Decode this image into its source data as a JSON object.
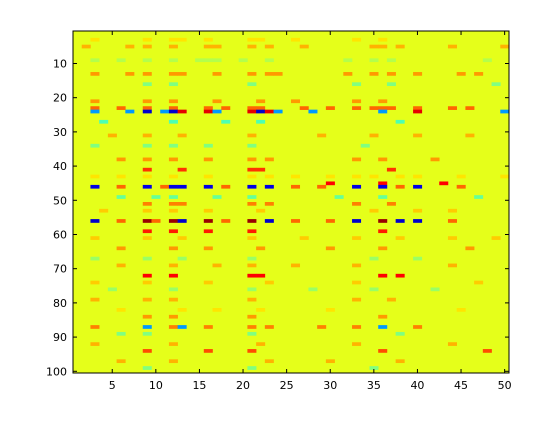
{
  "chart_data": {
    "type": "heatmap",
    "title": "",
    "xlabel": "",
    "ylabel": "",
    "colormap": "jet",
    "x_range": [
      1,
      51
    ],
    "y_range": [
      1,
      101
    ],
    "y_axis_direction": "top-to-bottom",
    "x_ticks": [
      5,
      10,
      15,
      20,
      25,
      30,
      35,
      40,
      45,
      50
    ],
    "y_ticks": [
      10,
      20,
      30,
      40,
      50,
      60,
      70,
      80,
      90,
      100
    ],
    "color_range": [
      -1,
      1
    ],
    "baseline_value": 0.2,
    "cells": [
      {
        "row": 3,
        "cols": [
          3,
          9,
          12,
          13,
          16,
          21,
          22,
          26,
          33,
          36
        ],
        "value": 0.3
      },
      {
        "row": 5,
        "cols": [
          2,
          7,
          9,
          12,
          16,
          17,
          21,
          23,
          27,
          35,
          36,
          38,
          44,
          50
        ],
        "value": 0.4
      },
      {
        "row": 9,
        "cols": [
          3,
          6,
          9,
          12,
          15,
          16,
          17,
          20,
          23,
          32,
          35,
          37,
          48
        ],
        "value": 0.1
      },
      {
        "row": 13,
        "cols": [
          3,
          7,
          9,
          12,
          13,
          17,
          21,
          23,
          24,
          32,
          35,
          37,
          40,
          45,
          47,
          51
        ],
        "value": 0.45
      },
      {
        "row": 16,
        "cols": [
          9,
          12,
          21,
          33,
          37,
          49
        ],
        "value": 0.0
      },
      {
        "row": 21,
        "cols": [
          3,
          9,
          12,
          17,
          22,
          26,
          33,
          36
        ],
        "value": 0.45
      },
      {
        "row": 23,
        "cols": [
          3,
          6,
          9,
          12,
          16,
          18,
          21,
          22,
          27,
          30,
          33,
          35,
          36,
          37,
          40,
          44,
          46,
          51
        ],
        "value": 0.55
      },
      {
        "row": 24,
        "cols": [
          9,
          12,
          22
        ],
        "value": -0.85
      },
      {
        "row": 24,
        "cols": [
          13,
          16,
          21,
          23,
          40
        ],
        "value": 0.8
      },
      {
        "row": 24,
        "cols": [
          3,
          7,
          11,
          17,
          24,
          28,
          36,
          50
        ],
        "value": -0.45
      },
      {
        "row": 27,
        "cols": [
          4,
          12,
          18,
          22,
          38
        ],
        "value": -0.1
      },
      {
        "row": 31,
        "cols": [
          5,
          9,
          13,
          21,
          29,
          35,
          40,
          46
        ],
        "value": 0.4
      },
      {
        "row": 34,
        "cols": [
          3,
          9,
          12,
          16,
          21,
          34
        ],
        "value": 0.0
      },
      {
        "row": 38,
        "cols": [
          6,
          9,
          12,
          16,
          21,
          23,
          33,
          36,
          42
        ],
        "value": 0.45
      },
      {
        "row": 41,
        "cols": [
          9,
          13,
          21,
          22,
          37
        ],
        "value": 0.65
      },
      {
        "row": 43,
        "cols": [
          3,
          6,
          9,
          12,
          16,
          21,
          23,
          26,
          30,
          33,
          35,
          38,
          40,
          45,
          50
        ],
        "value": 0.3
      },
      {
        "row": 45,
        "cols": [
          30,
          36,
          43
        ],
        "value": 0.75
      },
      {
        "row": 46,
        "cols": [
          3,
          9,
          12,
          13,
          16,
          21,
          23,
          33,
          36,
          40,
          51
        ],
        "value": -0.8
      },
      {
        "row": 46,
        "cols": [
          6,
          11,
          18,
          26,
          29,
          38,
          45
        ],
        "value": 0.55
      },
      {
        "row": 49,
        "cols": [
          6,
          10,
          12,
          17,
          21,
          31,
          36,
          47
        ],
        "value": -0.05
      },
      {
        "row": 51,
        "cols": [
          9,
          12,
          13,
          21,
          23,
          33,
          37
        ],
        "value": 0.5
      },
      {
        "row": 53,
        "cols": [
          4,
          9,
          12,
          16,
          22,
          35,
          40,
          44
        ],
        "value": 0.35
      },
      {
        "row": 56,
        "cols": [
          9,
          12,
          16,
          21,
          36
        ],
        "value": 0.95
      },
      {
        "row": 56,
        "cols": [
          3,
          13,
          23,
          33,
          38,
          40,
          51
        ],
        "value": -0.85
      },
      {
        "row": 56,
        "cols": [
          6,
          10,
          18,
          26,
          30,
          44
        ],
        "value": 0.55
      },
      {
        "row": 59,
        "cols": [
          9,
          12,
          16,
          21,
          36
        ],
        "value": 0.7
      },
      {
        "row": 61,
        "cols": [
          3,
          9,
          13,
          21,
          27,
          33,
          38,
          44,
          49
        ],
        "value": 0.35
      },
      {
        "row": 64,
        "cols": [
          6,
          12,
          16,
          22,
          30,
          36,
          46
        ],
        "value": 0.45
      },
      {
        "row": 67,
        "cols": [
          3,
          9,
          13,
          21,
          35,
          40
        ],
        "value": 0.05
      },
      {
        "row": 69,
        "cols": [
          6,
          12,
          17,
          21,
          26,
          33,
          44
        ],
        "value": 0.4
      },
      {
        "row": 72,
        "cols": [
          9,
          12,
          21,
          22,
          36,
          38
        ],
        "value": 0.75
      },
      {
        "row": 74,
        "cols": [
          3,
          9,
          16,
          23,
          33,
          47
        ],
        "value": 0.35
      },
      {
        "row": 76,
        "cols": [
          5,
          12,
          21,
          28,
          35,
          42
        ],
        "value": 0.05
      },
      {
        "row": 79,
        "cols": [
          3,
          9,
          12,
          21,
          33,
          37
        ],
        "value": 0.4
      },
      {
        "row": 82,
        "cols": [
          6,
          13,
          17,
          22,
          30,
          45
        ],
        "value": 0.3
      },
      {
        "row": 84,
        "cols": [
          9,
          12,
          21,
          36
        ],
        "value": 0.45
      },
      {
        "row": 87,
        "cols": [
          9,
          13,
          36
        ],
        "value": -0.45
      },
      {
        "row": 87,
        "cols": [
          3,
          12,
          16,
          21,
          23,
          29,
          33,
          40,
          51
        ],
        "value": 0.5
      },
      {
        "row": 89,
        "cols": [
          6,
          9,
          21,
          38
        ],
        "value": 0.0
      },
      {
        "row": 92,
        "cols": [
          3,
          12,
          22,
          33,
          44
        ],
        "value": 0.4
      },
      {
        "row": 94,
        "cols": [
          9,
          16,
          21,
          36,
          48
        ],
        "value": 0.6
      },
      {
        "row": 97,
        "cols": [
          6,
          12,
          23,
          30,
          38,
          51
        ],
        "value": 0.4
      },
      {
        "row": 99,
        "cols": [
          9,
          21,
          35
        ],
        "value": 0.0
      }
    ]
  }
}
